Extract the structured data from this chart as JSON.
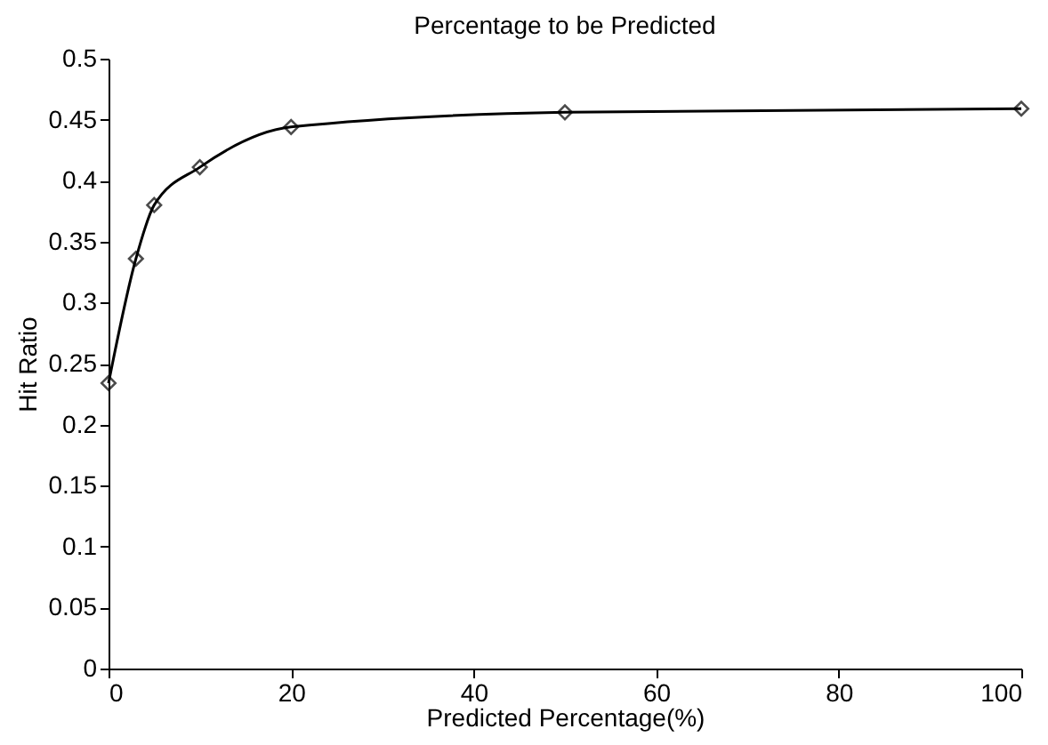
{
  "chart_data": {
    "type": "line",
    "title": "Percentage to be Predicted",
    "xlabel": "Predicted Percentage(%)",
    "ylabel": "Hit Ratio",
    "x": [
      0,
      3,
      5,
      10,
      20,
      50,
      100
    ],
    "series": [
      {
        "color": "#000000",
        "values": [
          0.234,
          0.336,
          0.38,
          0.411,
          0.444,
          0.456,
          0.459
        ]
      }
    ],
    "xlim": [
      0,
      100
    ],
    "xticks": [
      0,
      20,
      40,
      60,
      80,
      100
    ],
    "ylim": [
      0,
      0.5
    ],
    "yticks": [
      0,
      0.05,
      0.1,
      0.15,
      0.2,
      0.25,
      0.3,
      0.35,
      0.4,
      0.45,
      0.5
    ],
    "marker": "diamond",
    "grid": false
  }
}
